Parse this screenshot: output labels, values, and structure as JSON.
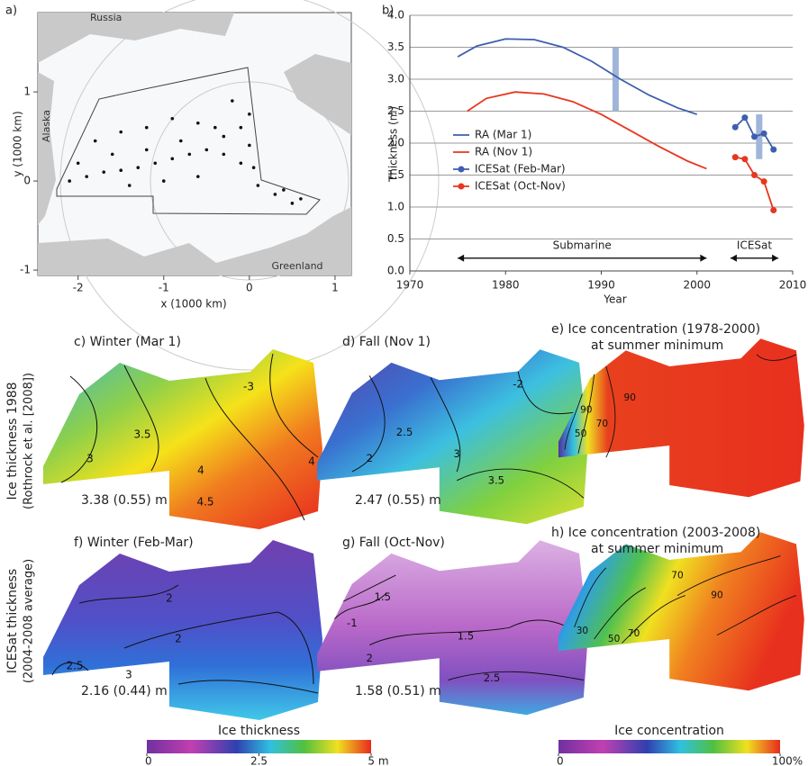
{
  "chart_data": [
    {
      "type": "scatter",
      "panel_label": "a)",
      "xlabel": "x (1000 km)",
      "ylabel": "y (1000 km)",
      "xlim": [
        -2.47,
        1.19
      ],
      "ylim": [
        -1.06,
        1.89
      ],
      "xticks": [
        -2,
        -1,
        0,
        1
      ],
      "yticks": [
        -1,
        0,
        1
      ],
      "map_labels": [
        "Russia",
        "Alaska",
        "Greenland"
      ],
      "color": "#111111",
      "x": [
        -2.1,
        -1.9,
        -1.7,
        -1.5,
        -1.3,
        -1.1,
        -0.9,
        -0.7,
        -0.5,
        -0.3,
        -0.1,
        0.1,
        0.3,
        0.5,
        -1.8,
        -1.5,
        -1.2,
        -0.9,
        -0.6,
        -0.3,
        0,
        0.05,
        0.4,
        -1.6,
        -1.2,
        -0.8,
        -0.4,
        0,
        -0.2,
        -0.1,
        -1.0,
        -0.6,
        -2.0,
        -1.4,
        0.6
      ],
      "y": [
        0.0,
        0.05,
        0.1,
        0.12,
        0.15,
        0.2,
        0.25,
        0.3,
        0.35,
        0.3,
        0.2,
        -0.05,
        -0.15,
        -0.25,
        0.45,
        0.55,
        0.6,
        0.7,
        0.65,
        0.5,
        0.4,
        0.15,
        -0.1,
        0.3,
        0.35,
        0.45,
        0.6,
        0.75,
        0.9,
        0.6,
        0.0,
        0.05,
        0.2,
        -0.05,
        -0.2
      ]
    },
    {
      "type": "line",
      "panel_label": "b)",
      "xlabel": "Year",
      "ylabel": "Thickness (m)",
      "xlim": [
        1970,
        2010
      ],
      "ylim": [
        0,
        4
      ],
      "xticks": [
        1970,
        1980,
        1990,
        2000,
        2010
      ],
      "yticks": [
        {
          "value": 0,
          "label": "0.0"
        },
        {
          "value": 0.5,
          "label": "0.5"
        },
        {
          "value": 1,
          "label": "1.0"
        },
        {
          "value": 1.5,
          "label": "1.5"
        },
        {
          "value": 2,
          "label": "2.0"
        },
        {
          "value": 2.5,
          "label": "2.5"
        },
        {
          "value": 3,
          "label": "3.0"
        },
        {
          "value": 3.5,
          "label": "3.5"
        },
        {
          "value": 4,
          "label": "4.0"
        }
      ],
      "grid": true,
      "series": [
        {
          "name": "RA (Mar 1)",
          "color": "#3d5fae",
          "marker": false,
          "x": [
            1975,
            1977,
            1980,
            1983,
            1986,
            1989,
            1992,
            1995,
            1998,
            2000
          ],
          "values": [
            3.35,
            3.52,
            3.63,
            3.62,
            3.5,
            3.28,
            3.0,
            2.75,
            2.55,
            2.45
          ]
        },
        {
          "name": "RA (Nov 1)",
          "color": "#e8361f",
          "marker": false,
          "x": [
            1976,
            1978,
            1981,
            1984,
            1987,
            1990,
            1993,
            1996,
            1999,
            2001
          ],
          "values": [
            2.5,
            2.7,
            2.8,
            2.77,
            2.65,
            2.45,
            2.2,
            1.95,
            1.72,
            1.6
          ]
        },
        {
          "name": "ICESat (Feb-Mar)",
          "color": "#3d5fae",
          "marker": true,
          "x": [
            2004,
            2005,
            2006,
            2007,
            2008
          ],
          "values": [
            2.25,
            2.4,
            2.1,
            2.15,
            1.9
          ]
        },
        {
          "name": "ICESat (Oct-Nov)",
          "color": "#e8361f",
          "marker": true,
          "x": [
            2004,
            2005,
            2006,
            2007,
            2008
          ],
          "values": [
            1.78,
            1.75,
            1.5,
            1.4,
            0.95
          ]
        }
      ],
      "uncertainty_bars": [
        {
          "x": 1991.5,
          "low": 2.5,
          "high": 3.5
        },
        {
          "x": 2006.5,
          "low": 1.75,
          "high": 2.45
        }
      ],
      "band_color": "#9fb5d9",
      "annotations": [
        {
          "text": "Submarine",
          "x": [
            1975,
            2001
          ],
          "y": 0.2
        },
        {
          "text": "ICESat",
          "x": [
            2003.5,
            2008.5
          ],
          "y": 0.2
        }
      ]
    }
  ],
  "row_labels": [
    {
      "line1": "Ice thickness 1988",
      "line2": "(Rothrock et al. [2008])"
    },
    {
      "line1": "ICESat thickness",
      "line2": "(2004-2008 average)"
    }
  ],
  "map_panels": [
    {
      "title": "c) Winter (Mar 1)",
      "stat": "3.38 (0.55) m",
      "contours": [
        "-3",
        "3.5",
        "3",
        "4",
        "4.5",
        "4"
      ]
    },
    {
      "title": "d) Fall (Nov 1)",
      "stat": "2.47 (0.55) m",
      "contours": [
        "-2",
        "2.5",
        "2",
        "3",
        "3.5"
      ]
    },
    {
      "title": "e) Ice concentration (1978-2000)",
      "subtitle": "at summer minimum",
      "contours": [
        "90",
        "50",
        "70",
        "90"
      ]
    },
    {
      "title": "f) Winter (Feb-Mar)",
      "stat": "2.16 (0.44) m",
      "contours": [
        "2",
        "2",
        "2.5",
        "3"
      ]
    },
    {
      "title": "g) Fall (Oct-Nov)",
      "stat": "1.58  (0.51) m",
      "contours": [
        "1.5",
        "-1",
        "1.5",
        "2",
        "2.5"
      ]
    },
    {
      "title": "h) Ice concentration (2003-2008)",
      "subtitle": "at summer minimum",
      "contours": [
        "30",
        "50",
        "70",
        "70",
        "90"
      ]
    }
  ],
  "colorbars": [
    {
      "title": "Ice thickness",
      "lim": [
        0,
        5
      ],
      "ticks": [
        0,
        2.5,
        {
          "value": 5,
          "label": "5 m"
        }
      ]
    },
    {
      "title": "Ice concentration",
      "lim": [
        0,
        100
      ],
      "ticks": [
        0,
        {
          "value": 100,
          "label": "100%"
        }
      ]
    }
  ]
}
